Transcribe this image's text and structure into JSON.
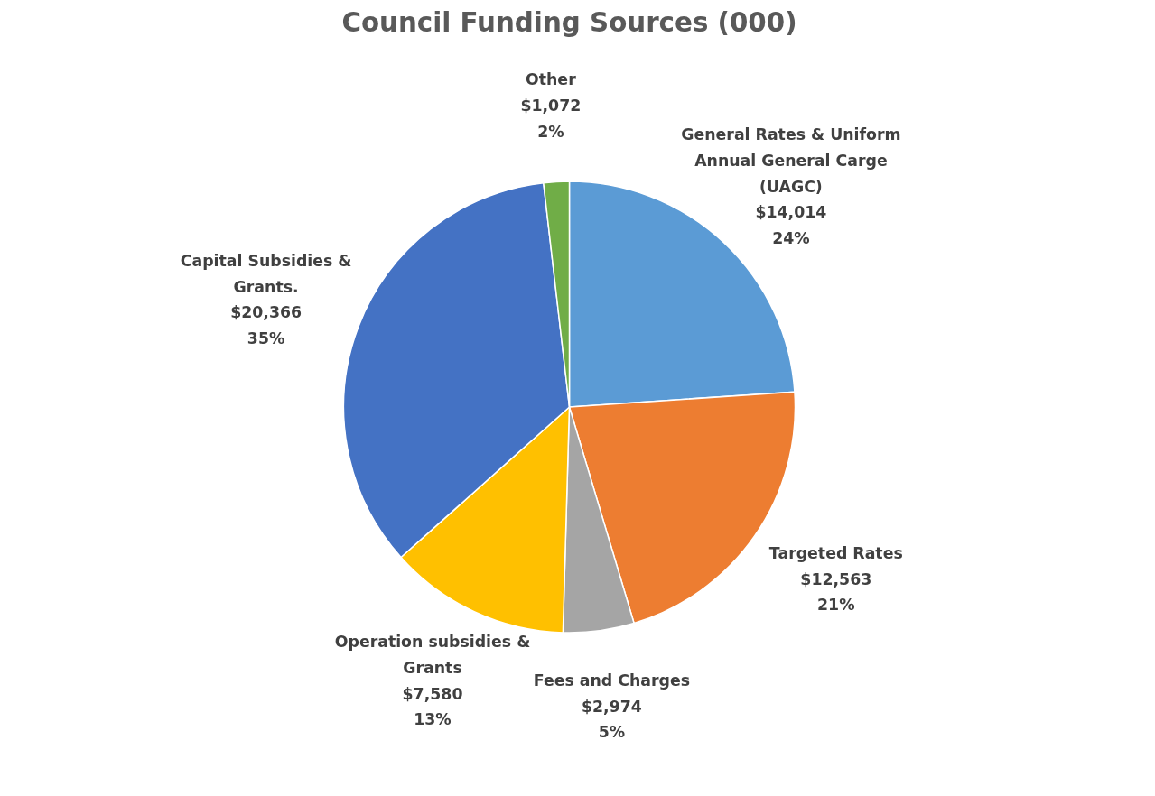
{
  "chart_data": {
    "type": "pie",
    "title": "Council Funding Sources (000)",
    "categories": [
      "General Rates & Uniform Annual General Carge (UAGC)",
      "Targeted Rates",
      "Fees and Charges",
      "Operation subsidies & Grants",
      "Capital Subsidies & Grants.",
      "Other"
    ],
    "values": [
      14014,
      12563,
      2974,
      7580,
      20366,
      1072
    ],
    "colors": [
      "#5b9bd5",
      "#ed7d31",
      "#a5a5a5",
      "#ffc000",
      "#4472c4",
      "#70ad47"
    ],
    "value_labels": [
      "$14,014 24%",
      "$12,563 21%",
      "$2,974 5%",
      "$7,580 13%",
      "$20,366 35%",
      "$1,072 2%"
    ],
    "legend": false
  }
}
